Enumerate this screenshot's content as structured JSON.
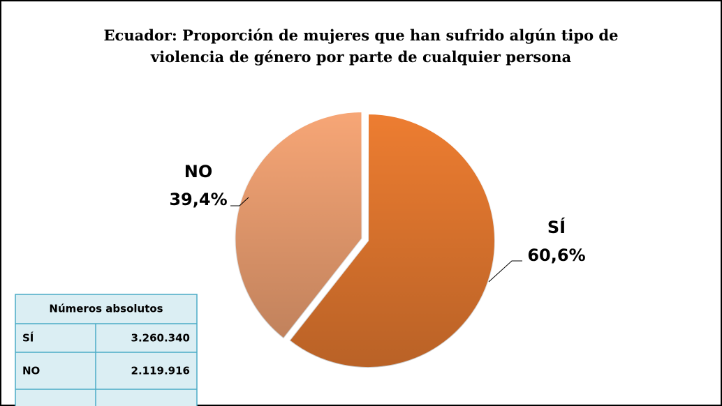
{
  "chart_data": {
    "type": "pie",
    "title": "Ecuador: Proporción de mujeres que han sufrido algún tipo de violencia de género por parte de cualquier persona",
    "categories": [
      "SÍ",
      "NO"
    ],
    "values": [
      60.6,
      39.4
    ],
    "value_labels": [
      "60,6%",
      "39,4%"
    ],
    "colors": [
      "#ed7d31",
      "#f7a676"
    ]
  },
  "table": {
    "title": "Números absolutos",
    "rows": [
      [
        "SÍ",
        "3.260.340"
      ],
      [
        "NO",
        "2.119.916"
      ]
    ]
  }
}
